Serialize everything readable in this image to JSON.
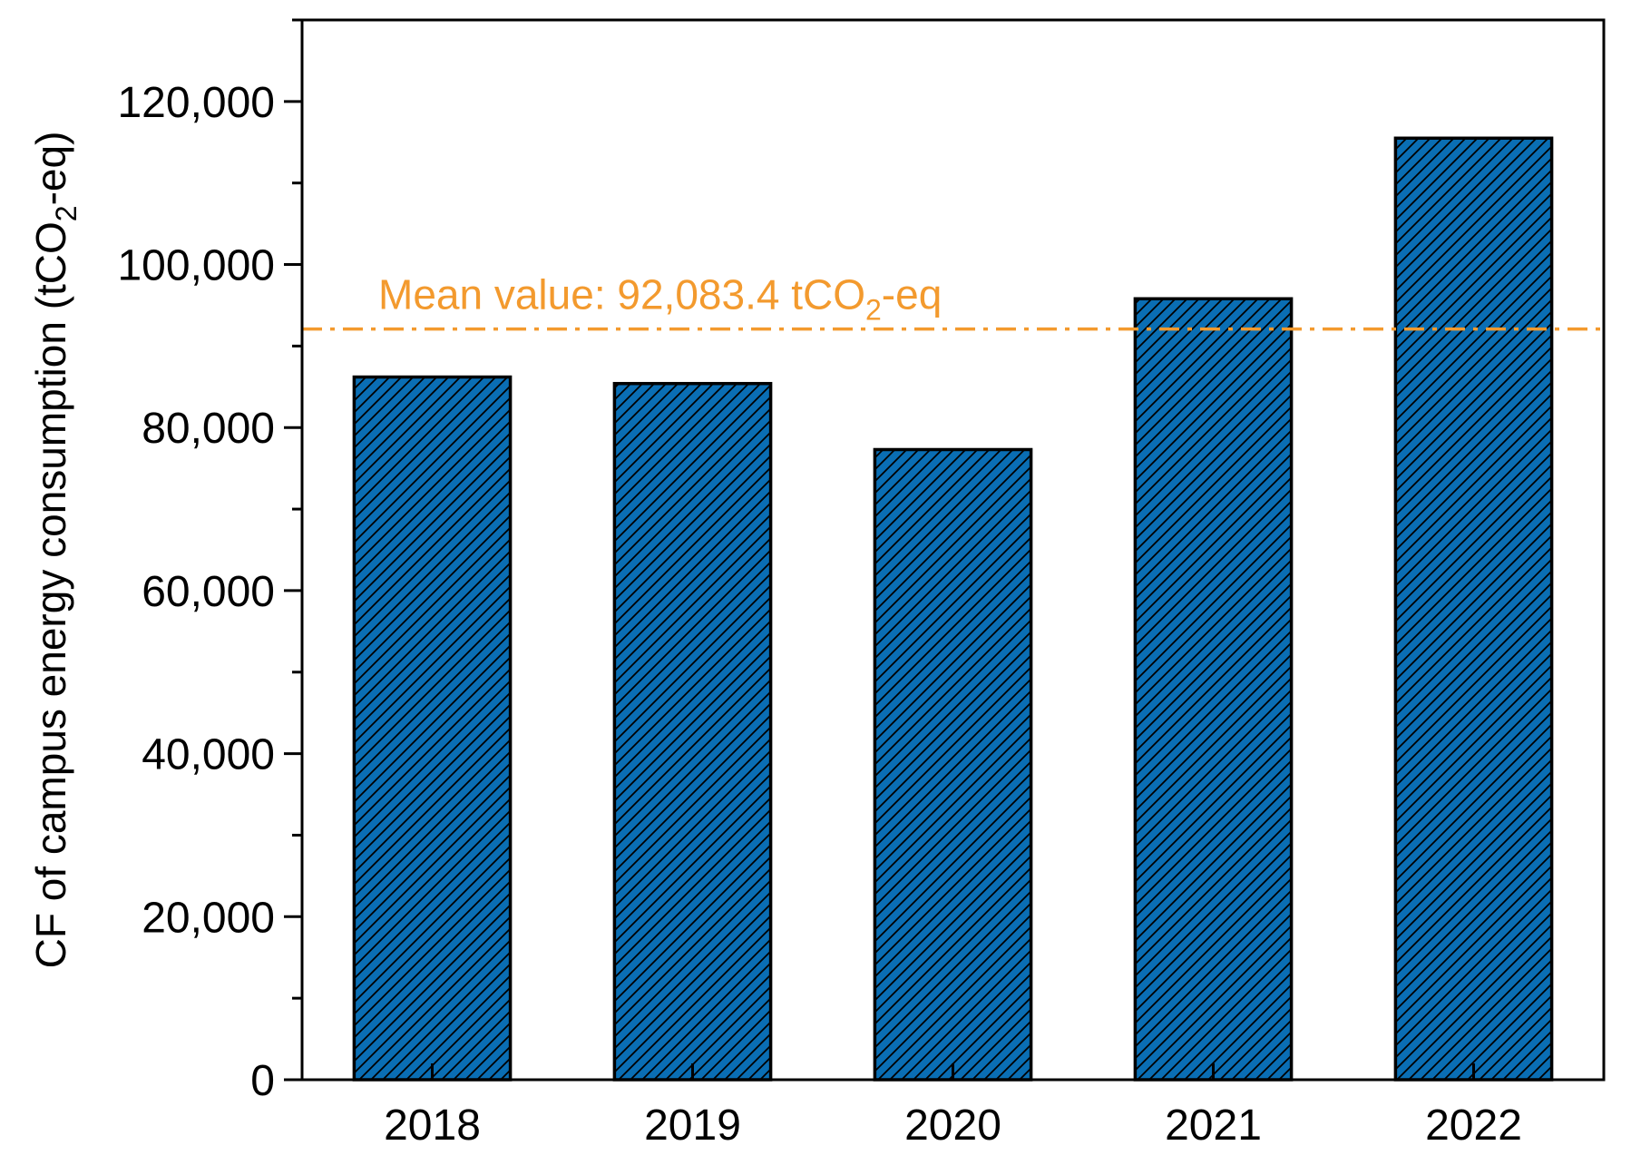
{
  "colors": {
    "bar_fill": "#0a6eb4",
    "bar_stroke": "#000000",
    "mean_line": "#f39a2e"
  },
  "chart_data": {
    "type": "bar",
    "categories": [
      "2018",
      "2019",
      "2020",
      "2021",
      "2022"
    ],
    "values": [
      86200,
      85400,
      77300,
      95800,
      115500
    ],
    "xlabel": "",
    "ylabel": {
      "prefix": "CF of campus energy consumption (tCO",
      "subscript": "2",
      "suffix": "-eq)"
    },
    "ylim": [
      0,
      130000
    ],
    "yticks": [
      0,
      20000,
      40000,
      60000,
      80000,
      100000,
      120000
    ],
    "ytick_labels": [
      "0",
      "20,000",
      "40,000",
      "60,000",
      "80,000",
      "100,000",
      "120,000"
    ],
    "grid": false,
    "bar_pattern": "diagonal-hatch",
    "reference_line": {
      "value": 92083.4,
      "style": "dash-dot",
      "label": {
        "prefix": "Mean value: 92,083.4 tCO",
        "subscript": "2",
        "suffix": "-eq"
      }
    }
  }
}
